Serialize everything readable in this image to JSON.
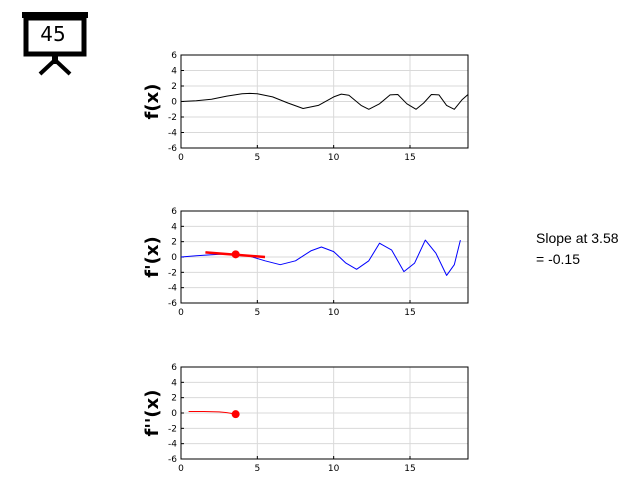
{
  "badge": {
    "text": "45",
    "icon": "presentation-board-icon"
  },
  "slope_annotation": {
    "line1": "Slope at 3.58",
    "line2": "= -0.15"
  },
  "chart_data": [
    {
      "type": "line",
      "ylabel": "f(x)",
      "xlim": [
        0,
        18.8
      ],
      "ylim": [
        -6,
        6
      ],
      "xticks": [
        0,
        5,
        10,
        15
      ],
      "yticks": [
        -6,
        -4,
        -2,
        0,
        2,
        4,
        6
      ],
      "grid": true,
      "series": [
        {
          "color": "#000000",
          "x": [
            0,
            1,
            2,
            3,
            4,
            4.5,
            5,
            6,
            7,
            8,
            9,
            10,
            10.5,
            11,
            11.8,
            12.3,
            13,
            13.7,
            14.2,
            14.8,
            15.4,
            15.9,
            16.4,
            16.9,
            17.4,
            17.9,
            18.4,
            18.8
          ],
          "y": [
            0,
            0.1,
            0.3,
            0.7,
            1.0,
            1.05,
            1.0,
            0.6,
            -0.2,
            -0.9,
            -0.5,
            0.6,
            0.95,
            0.8,
            -0.5,
            -1.0,
            -0.3,
            0.85,
            0.9,
            -0.3,
            -1.0,
            -0.2,
            0.9,
            0.85,
            -0.5,
            -1.0,
            0.2,
            0.9
          ]
        }
      ]
    },
    {
      "type": "line",
      "ylabel": "f'(x)",
      "xlim": [
        0,
        18.8
      ],
      "ylim": [
        -6,
        6
      ],
      "xticks": [
        0,
        5,
        10,
        15
      ],
      "yticks": [
        -6,
        -4,
        -2,
        0,
        2,
        4,
        6
      ],
      "grid": true,
      "series": [
        {
          "color": "#0000ff",
          "x": [
            0,
            1,
            2,
            3,
            3.6,
            4.5,
            5.5,
            6.5,
            7.5,
            8.5,
            9.2,
            10,
            10.8,
            11.5,
            12.3,
            13,
            13.8,
            14.6,
            15.3,
            16,
            16.7,
            17.4,
            17.9,
            18.3
          ],
          "y": [
            0,
            0.15,
            0.3,
            0.4,
            0.35,
            0.1,
            -0.5,
            -1.0,
            -0.5,
            0.8,
            1.3,
            0.7,
            -0.8,
            -1.6,
            -0.5,
            1.8,
            0.9,
            -1.9,
            -0.8,
            2.2,
            0.5,
            -2.4,
            -1.0,
            2.2
          ]
        },
        {
          "color": "#ff0000",
          "x": [
            1.6,
            5.5
          ],
          "y": [
            0.6,
            0.0
          ]
        }
      ],
      "marker": {
        "x": 3.58,
        "y": 0.35,
        "color": "#ff0000"
      }
    },
    {
      "type": "line",
      "ylabel": "f''(x)",
      "xlim": [
        0,
        18.8
      ],
      "ylim": [
        -6,
        6
      ],
      "xticks": [
        0,
        5,
        10,
        15
      ],
      "yticks": [
        -6,
        -4,
        -2,
        0,
        2,
        4,
        6
      ],
      "grid": true,
      "series": [
        {
          "color": "#ff0000",
          "x": [
            0.5,
            1.5,
            2.5,
            3.0,
            3.58
          ],
          "y": [
            0.2,
            0.2,
            0.15,
            0.05,
            -0.15
          ]
        }
      ],
      "marker": {
        "x": 3.58,
        "y": -0.15,
        "color": "#ff0000"
      }
    }
  ]
}
